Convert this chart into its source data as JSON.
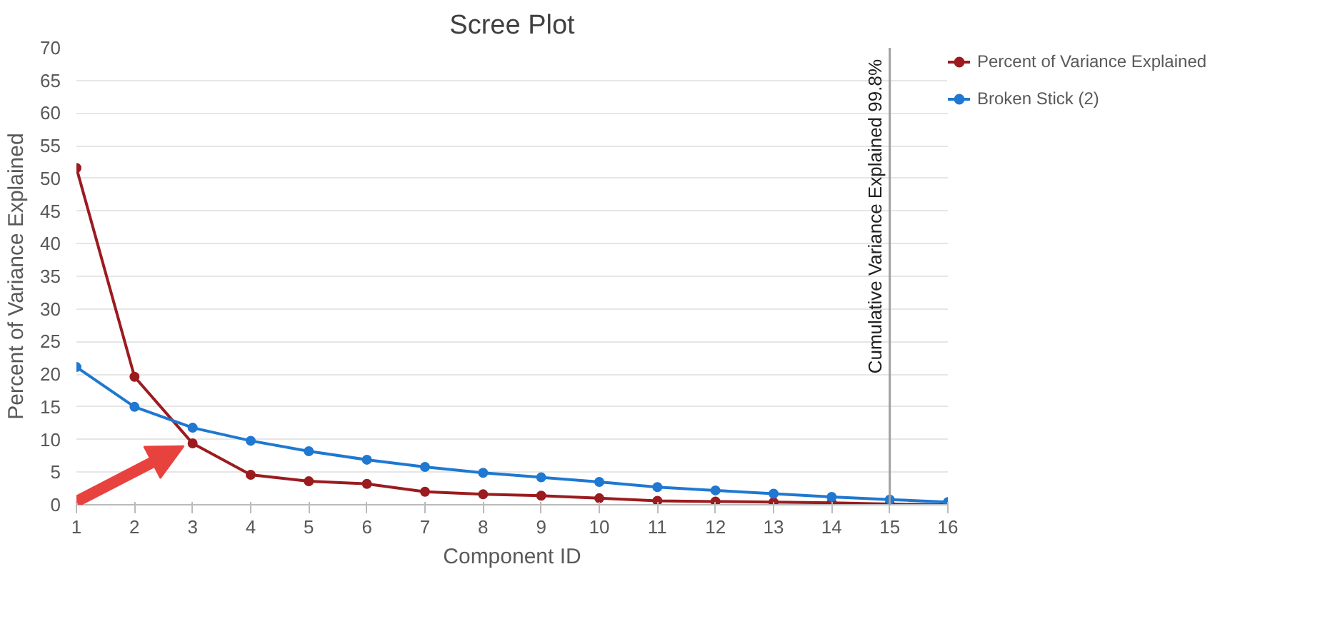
{
  "chart_data": {
    "type": "line",
    "title": "Scree Plot",
    "xlabel": "Component ID",
    "ylabel": "Percent of Variance Explained",
    "x": [
      1,
      2,
      3,
      4,
      5,
      6,
      7,
      8,
      9,
      10,
      11,
      12,
      13,
      14,
      15,
      16
    ],
    "series": [
      {
        "name": "Percent of Variance Explained",
        "color": "#9b1b1f",
        "values": [
          51.6,
          19.6,
          9.4,
          4.6,
          3.6,
          3.2,
          2.0,
          1.6,
          1.4,
          1.0,
          0.6,
          0.5,
          0.4,
          0.3,
          0.1,
          0.0
        ]
      },
      {
        "name": "Broken Stick (2)",
        "color": "#1f78d1",
        "values": [
          21.1,
          15.0,
          11.8,
          9.8,
          8.2,
          6.9,
          5.8,
          4.9,
          4.2,
          3.5,
          2.7,
          2.2,
          1.7,
          1.2,
          0.8,
          0.4
        ]
      }
    ],
    "xlim": [
      1,
      16
    ],
    "xticks": [
      1,
      2,
      3,
      4,
      5,
      6,
      7,
      8,
      9,
      10,
      11,
      12,
      13,
      14,
      15,
      16
    ],
    "ylim": [
      0,
      70
    ],
    "yticks": [
      0,
      5,
      10,
      15,
      20,
      25,
      30,
      35,
      40,
      45,
      50,
      55,
      60,
      65,
      70
    ],
    "ref_lines": [
      {
        "axis": "x",
        "value": 15,
        "label": "Cumulative Variance Explained 99.8%",
        "color": "#a0a0a0"
      }
    ],
    "grid": "y",
    "legend": "right",
    "marker": "circle",
    "line_style": "solid"
  }
}
